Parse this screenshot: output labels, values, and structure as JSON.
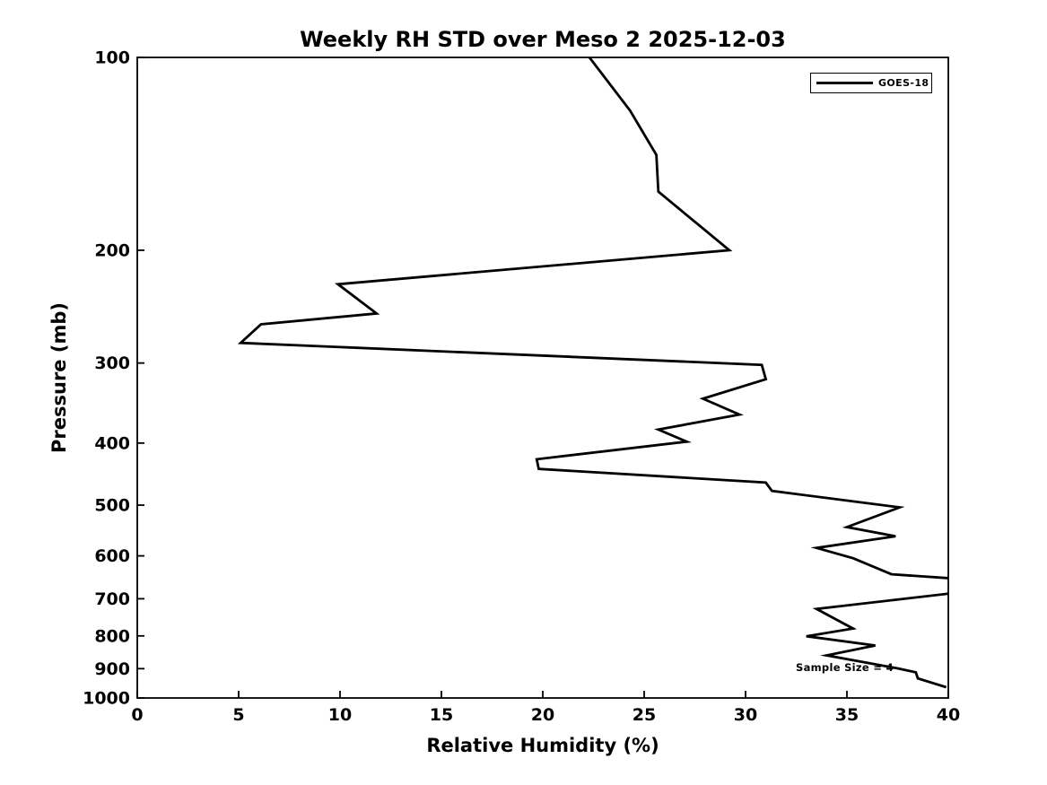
{
  "figure": {
    "background_color": "#ffffff",
    "frame_color": "#000000"
  },
  "chart_data": {
    "type": "line",
    "title": "Weekly RH STD over Meso 2 2025-12-03",
    "xlabel": "Relative Humidity (%)",
    "ylabel": "Pressure (mb)",
    "xlim": [
      0,
      40
    ],
    "ylim": [
      100,
      1000
    ],
    "y_scale": "log",
    "y_inverted": true,
    "grid": false,
    "x_ticks": [
      0,
      5,
      10,
      15,
      20,
      25,
      30,
      35,
      40
    ],
    "y_ticks": [
      100,
      200,
      300,
      400,
      500,
      600,
      700,
      800,
      900,
      1000
    ],
    "legend": {
      "position": "upper-right",
      "entries": [
        {
          "label": "GOES-18",
          "color": "#000000"
        }
      ]
    },
    "annotation": {
      "text": "Sample Size = 4",
      "x_rh": 32.5,
      "y_pressure": 897
    },
    "series": [
      {
        "name": "GOES-18",
        "color": "#000000",
        "points_rh_pressure": [
          [
            22.3,
            100
          ],
          [
            24.3,
            121
          ],
          [
            25.6,
            142
          ],
          [
            25.7,
            162
          ],
          [
            29.2,
            200
          ],
          [
            9.9,
            226
          ],
          [
            11.8,
            251
          ],
          [
            6.1,
            261
          ],
          [
            5.1,
            279
          ],
          [
            30.8,
            302
          ],
          [
            31.0,
            318
          ],
          [
            27.9,
            341
          ],
          [
            29.7,
            361
          ],
          [
            25.7,
            381
          ],
          [
            27.1,
            398
          ],
          [
            19.7,
            424
          ],
          [
            19.8,
            439
          ],
          [
            31.0,
            461
          ],
          [
            31.3,
            475
          ],
          [
            37.6,
            504
          ],
          [
            35.0,
            541
          ],
          [
            37.4,
            559
          ],
          [
            33.5,
            583
          ],
          [
            35.3,
            605
          ],
          [
            37.2,
            641
          ],
          [
            40.6,
            652
          ],
          [
            40.6,
            684
          ],
          [
            33.5,
            726
          ],
          [
            35.3,
            779
          ],
          [
            33.0,
            801
          ],
          [
            36.4,
            828
          ],
          [
            34.0,
            858
          ],
          [
            37.5,
            899
          ],
          [
            38.4,
            912
          ],
          [
            38.5,
            932
          ],
          [
            39.9,
            962
          ]
        ]
      }
    ]
  }
}
